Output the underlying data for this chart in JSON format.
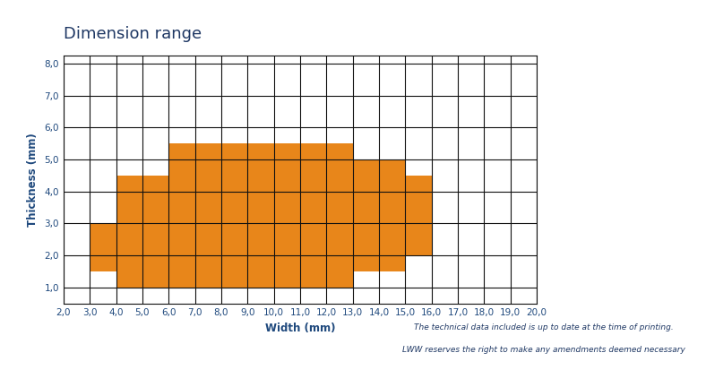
{
  "title": "Dimension range",
  "xlabel": "Width (mm)",
  "ylabel": "Thickness (mm)",
  "x_min": 2.0,
  "x_max": 20.0,
  "y_min": 0.5,
  "y_max": 8.25,
  "x_ticks": [
    2.0,
    3.0,
    4.0,
    5.0,
    6.0,
    7.0,
    8.0,
    9.0,
    10.0,
    11.0,
    12.0,
    13.0,
    14.0,
    15.0,
    16.0,
    17.0,
    18.0,
    19.0,
    20.0
  ],
  "y_ticks": [
    1.0,
    2.0,
    3.0,
    4.0,
    5.0,
    6.0,
    7.0,
    8.0
  ],
  "orange_color": "#E8861A",
  "grid_color": "#111111",
  "bg_color": "#ffffff",
  "title_color": "#1F3864",
  "label_color": "#1F497D",
  "orange_regions": [
    {
      "x0": 3.0,
      "x1": 4.0,
      "y0": 1.5,
      "y1": 3.0
    },
    {
      "x0": 4.0,
      "x1": 6.0,
      "y0": 1.0,
      "y1": 4.5
    },
    {
      "x0": 6.0,
      "x1": 13.0,
      "y0": 1.0,
      "y1": 5.5
    },
    {
      "x0": 13.0,
      "x1": 15.0,
      "y0": 1.5,
      "y1": 5.0
    },
    {
      "x0": 15.0,
      "x1": 16.0,
      "y0": 2.0,
      "y1": 4.5
    }
  ],
  "footnote1": "The technical data included is up to date at the time of printing.",
  "footnote2": "LWW reserves the right to make any amendments deemed necessary",
  "footnote_color": "#1F3864",
  "footnote_fontsize": 6.5,
  "title_fontsize": 13,
  "label_fontsize": 8.5,
  "tick_fontsize": 7.5
}
